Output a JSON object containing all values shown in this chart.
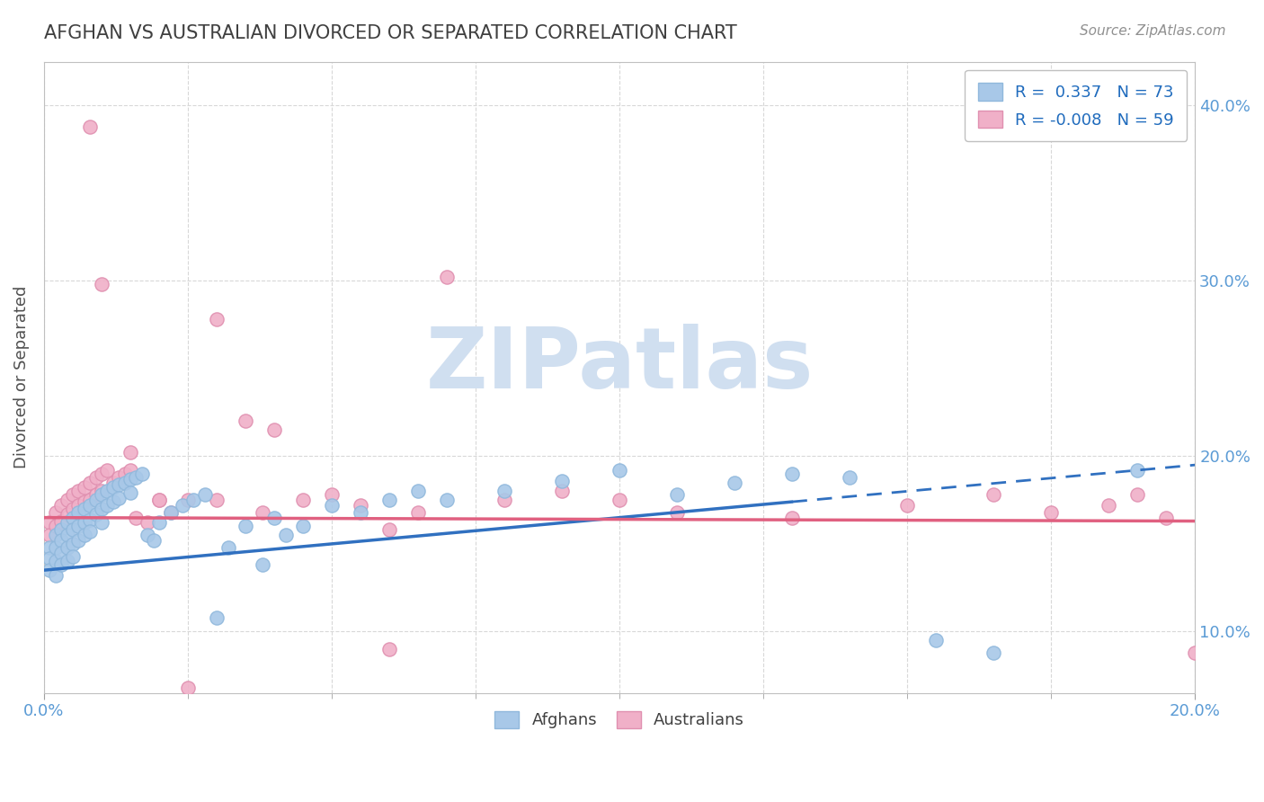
{
  "title": "AFGHAN VS AUSTRALIAN DIVORCED OR SEPARATED CORRELATION CHART",
  "source_text": "Source: ZipAtlas.com",
  "ylabel": "Divorced or Separated",
  "xlim": [
    0.0,
    0.2
  ],
  "ylim": [
    0.065,
    0.425
  ],
  "yticks": [
    0.1,
    0.2,
    0.3,
    0.4
  ],
  "ytick_labels": [
    "10.0%",
    "20.0%",
    "30.0%",
    "40.0%"
  ],
  "afghan_color": "#a8c8e8",
  "afghan_edge": "#90b8dc",
  "australian_color": "#f0b0c8",
  "australian_edge": "#e090b0",
  "afghan_R": 0.337,
  "afghan_N": 73,
  "australian_R": -0.008,
  "australian_N": 59,
  "blue_line_color": "#3070c0",
  "pink_line_color": "#e06080",
  "watermark": "ZIPatlas",
  "watermark_color": "#d0dff0",
  "grid_color": "#d8d8d8",
  "afghan_scatter_x": [
    0.001,
    0.001,
    0.001,
    0.002,
    0.002,
    0.002,
    0.002,
    0.003,
    0.003,
    0.003,
    0.003,
    0.004,
    0.004,
    0.004,
    0.004,
    0.005,
    0.005,
    0.005,
    0.005,
    0.006,
    0.006,
    0.006,
    0.007,
    0.007,
    0.007,
    0.008,
    0.008,
    0.008,
    0.009,
    0.009,
    0.01,
    0.01,
    0.01,
    0.011,
    0.011,
    0.012,
    0.012,
    0.013,
    0.013,
    0.014,
    0.015,
    0.015,
    0.016,
    0.017,
    0.018,
    0.019,
    0.02,
    0.022,
    0.024,
    0.026,
    0.028,
    0.03,
    0.032,
    0.035,
    0.038,
    0.04,
    0.042,
    0.045,
    0.05,
    0.055,
    0.06,
    0.065,
    0.07,
    0.08,
    0.09,
    0.1,
    0.11,
    0.12,
    0.13,
    0.14,
    0.155,
    0.165,
    0.19
  ],
  "afghan_scatter_y": [
    0.148,
    0.142,
    0.135,
    0.155,
    0.148,
    0.14,
    0.132,
    0.158,
    0.152,
    0.145,
    0.138,
    0.162,
    0.155,
    0.148,
    0.14,
    0.165,
    0.158,
    0.15,
    0.143,
    0.168,
    0.16,
    0.152,
    0.17,
    0.162,
    0.155,
    0.172,
    0.164,
    0.157,
    0.175,
    0.167,
    0.178,
    0.17,
    0.162,
    0.18,
    0.172,
    0.182,
    0.174,
    0.184,
    0.176,
    0.185,
    0.187,
    0.179,
    0.188,
    0.19,
    0.155,
    0.152,
    0.162,
    0.168,
    0.172,
    0.175,
    0.178,
    0.108,
    0.148,
    0.16,
    0.138,
    0.165,
    0.155,
    0.16,
    0.172,
    0.168,
    0.175,
    0.18,
    0.175,
    0.18,
    0.186,
    0.192,
    0.178,
    0.185,
    0.19,
    0.188,
    0.095,
    0.088,
    0.192
  ],
  "australian_scatter_x": [
    0.001,
    0.001,
    0.002,
    0.002,
    0.003,
    0.003,
    0.004,
    0.004,
    0.005,
    0.005,
    0.006,
    0.006,
    0.007,
    0.007,
    0.008,
    0.008,
    0.009,
    0.009,
    0.01,
    0.01,
    0.011,
    0.012,
    0.013,
    0.014,
    0.015,
    0.016,
    0.018,
    0.02,
    0.022,
    0.025,
    0.03,
    0.035,
    0.04,
    0.045,
    0.055,
    0.06,
    0.065,
    0.07,
    0.08,
    0.09,
    0.1,
    0.11,
    0.13,
    0.15,
    0.165,
    0.175,
    0.185,
    0.19,
    0.195,
    0.2,
    0.008,
    0.01,
    0.015,
    0.02,
    0.025,
    0.03,
    0.038,
    0.05,
    0.06
  ],
  "australian_scatter_y": [
    0.162,
    0.155,
    0.168,
    0.16,
    0.172,
    0.163,
    0.175,
    0.167,
    0.178,
    0.17,
    0.18,
    0.172,
    0.182,
    0.174,
    0.185,
    0.175,
    0.188,
    0.178,
    0.19,
    0.18,
    0.192,
    0.185,
    0.188,
    0.19,
    0.192,
    0.165,
    0.162,
    0.175,
    0.168,
    0.175,
    0.278,
    0.22,
    0.215,
    0.175,
    0.172,
    0.158,
    0.168,
    0.302,
    0.175,
    0.18,
    0.175,
    0.168,
    0.165,
    0.172,
    0.178,
    0.168,
    0.172,
    0.178,
    0.165,
    0.088,
    0.388,
    0.298,
    0.202,
    0.175,
    0.068,
    0.175,
    0.168,
    0.178,
    0.09
  ]
}
